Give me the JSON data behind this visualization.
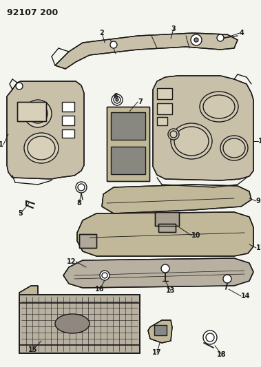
{
  "title": "92107 200",
  "bg_color": "#f5f5f0",
  "line_color": "#1a1a1a",
  "lw": 1.0,
  "fig_w": 3.79,
  "fig_h": 5.33,
  "dpi": 100
}
